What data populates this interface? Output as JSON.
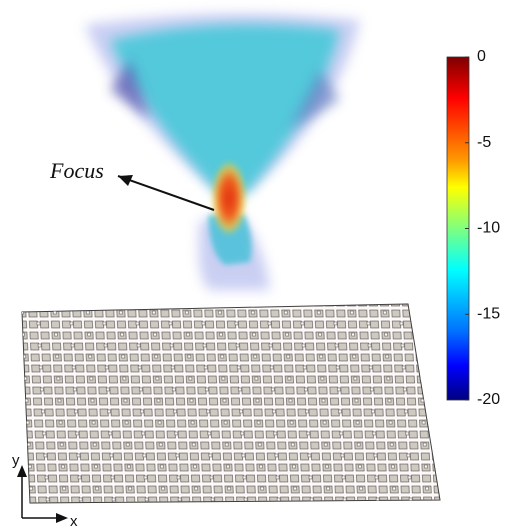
{
  "annotation": "Focus",
  "colorbar": {
    "ticks": [
      0,
      -5,
      -10,
      -15,
      -20
    ]
  },
  "axes": {
    "y": "y",
    "x": "x"
  }
}
